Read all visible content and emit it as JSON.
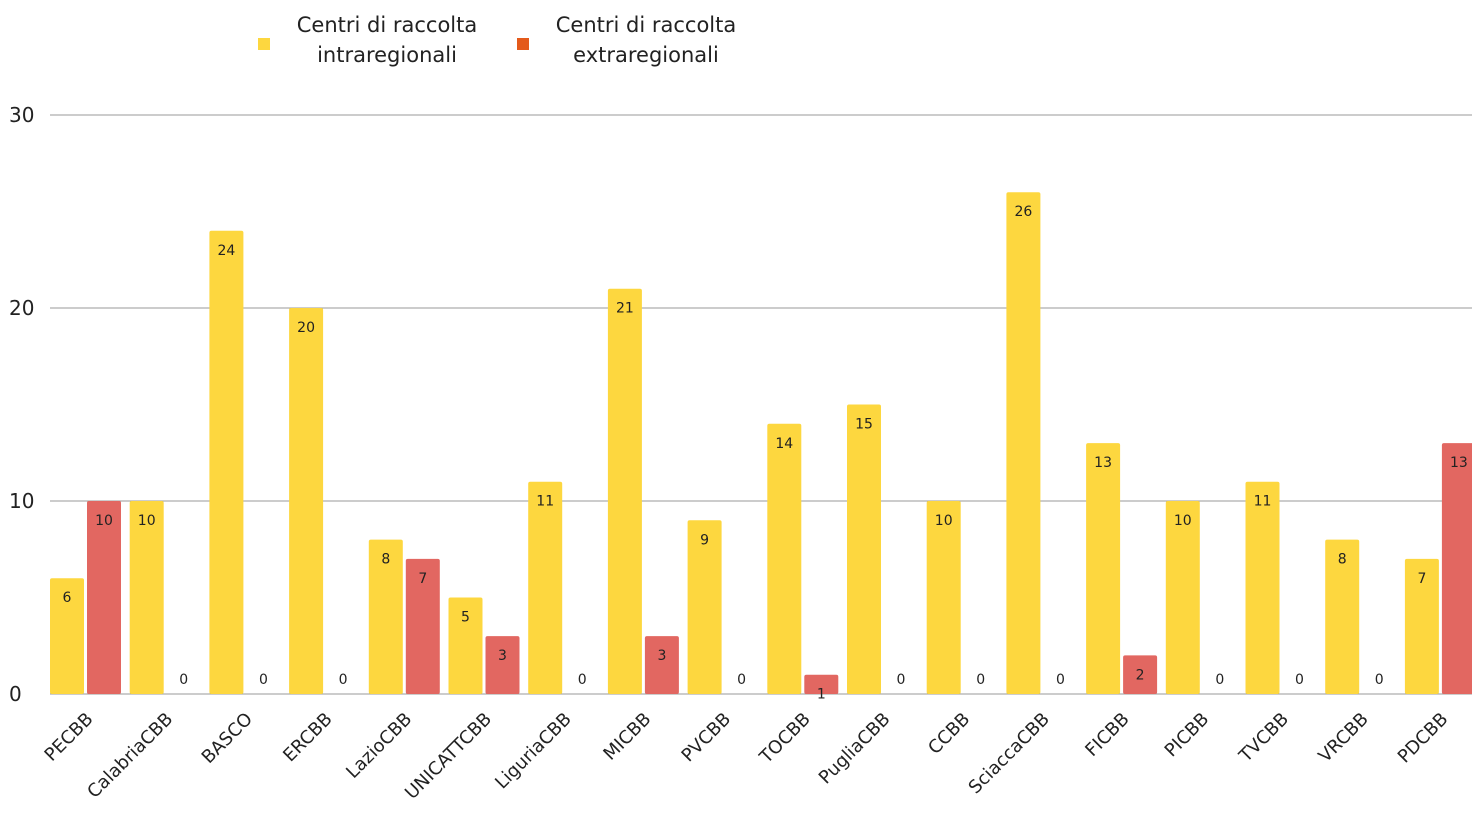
{
  "chart_data": {
    "type": "bar",
    "categories": [
      "PECBB",
      "CalabriaCBB",
      "BASCO",
      "ERCBB",
      "LazioCBB",
      "UNICATTCBB",
      "LiguriaCBB",
      "MICBB",
      "PVCBB",
      "TOCBB",
      "PugliaCBB",
      "CCBB",
      "SciaccaCBB",
      "FICBB",
      "PICBB",
      "TVCBB",
      "VRCBB",
      "PDCBB"
    ],
    "series": [
      {
        "name": "Centri di raccolta intraregionali",
        "color": "#fdd73f",
        "values": [
          6,
          10,
          24,
          20,
          8,
          5,
          11,
          21,
          9,
          14,
          15,
          10,
          26,
          13,
          10,
          11,
          8,
          7
        ]
      },
      {
        "name": "Centri di raccolta extraregionali",
        "color": "#e26761",
        "values": [
          10,
          0,
          0,
          0,
          7,
          3,
          0,
          3,
          0,
          1,
          0,
          0,
          0,
          2,
          0,
          0,
          0,
          13
        ]
      }
    ],
    "legend_colors": [
      "#fdd73f",
      "#e45a1b"
    ],
    "ylim": [
      0,
      30
    ],
    "yticks": [
      0,
      10,
      20,
      30
    ],
    "grid": true,
    "legend_position": "top",
    "title": "",
    "xlabel": "",
    "ylabel": ""
  }
}
